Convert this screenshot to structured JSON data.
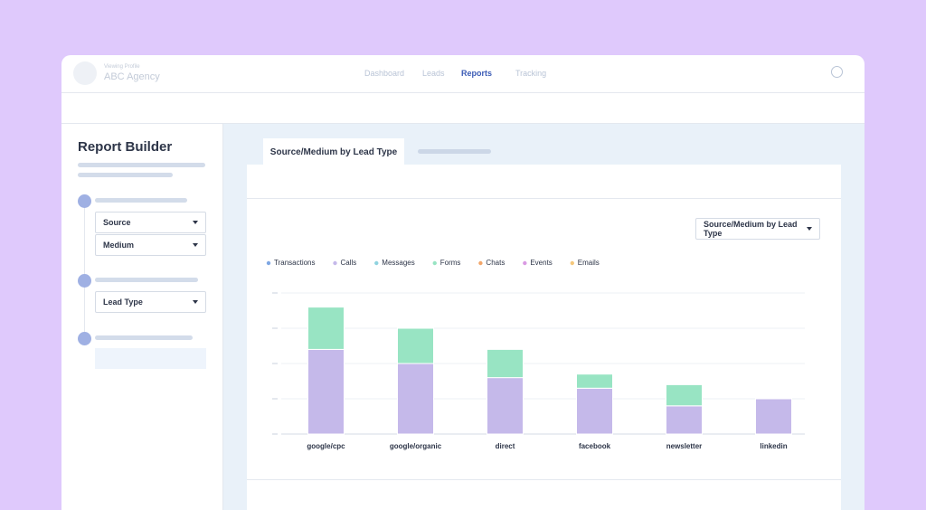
{
  "header": {
    "profile_label": "Viewing Profile",
    "profile_name": "ABC Agency",
    "nav": [
      "Dashboard",
      "Leads",
      "Reports",
      "Tracking"
    ]
  },
  "sidebar": {
    "title": "Report Builder",
    "dropdowns": [
      "Source",
      "Medium",
      "Lead Type"
    ]
  },
  "tab": "Source/Medium by Lead Type",
  "report_selector": "Source/Medium by Lead Type",
  "chart_data": {
    "type": "stacked_bar",
    "categories": [
      "google/cpc",
      "google/organic",
      "direct",
      "facebook",
      "newsletter",
      "linkedin"
    ],
    "series": [
      {
        "name": "Transactions",
        "color": "#7fa7e3",
        "values": [
          0,
          0,
          0,
          0,
          0,
          0
        ]
      },
      {
        "name": "Calls",
        "color": "#c5b9ea",
        "values": [
          2.4,
          2.0,
          1.6,
          1.3,
          0.8,
          1.0
        ]
      },
      {
        "name": "Messages",
        "color": "#8fd3df",
        "values": [
          0,
          0,
          0,
          0,
          0,
          0
        ]
      },
      {
        "name": "Forms",
        "color": "#98e4c3",
        "values": [
          1.2,
          1.0,
          0.8,
          0.4,
          0.6,
          0
        ]
      },
      {
        "name": "Chats",
        "color": "#f2a66a",
        "values": [
          0,
          0,
          0,
          0,
          0,
          0
        ]
      },
      {
        "name": "Events",
        "color": "#d99ae3",
        "values": [
          0,
          0,
          0,
          0,
          0,
          0
        ]
      },
      {
        "name": "Emails",
        "color": "#f5c87c",
        "values": [
          0,
          0,
          0,
          0,
          0,
          0
        ]
      }
    ],
    "ylim": [
      0,
      4
    ],
    "yticks": [
      0,
      1,
      2,
      3,
      4
    ],
    "grid": true
  }
}
